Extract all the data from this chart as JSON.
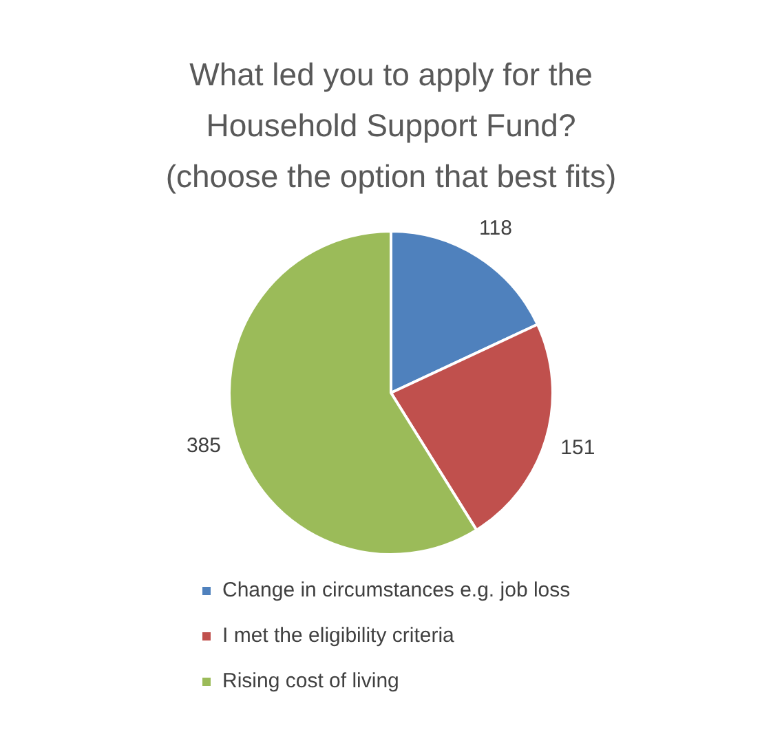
{
  "chart_data": {
    "type": "pie",
    "title": "What led you to apply for the Household Support Fund?\n(choose the option that best fits)",
    "categories": [
      "Change in circumstances e.g. job loss",
      "I met the eligibility criteria",
      "Rising cost of living"
    ],
    "values": [
      118,
      151,
      385
    ],
    "colors": [
      "#4f81bd",
      "#c0504d",
      "#9bbb59"
    ],
    "data_labels": true,
    "legend": "bottom"
  }
}
